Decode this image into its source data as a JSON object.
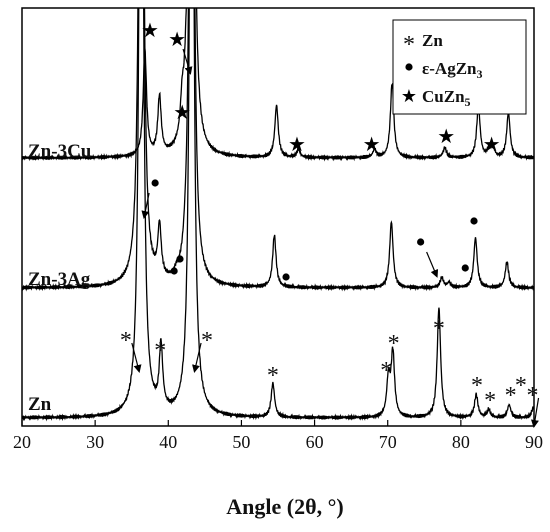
{
  "chart_data": {
    "type": "line",
    "title": "",
    "xlabel": "Angle (2θ, °)",
    "ylabel": "",
    "xlim": [
      20,
      90
    ],
    "xticks": [
      20,
      30,
      40,
      50,
      60,
      70,
      80,
      90
    ],
    "legend": {
      "position": "top-right",
      "entries": [
        {
          "symbol": "*",
          "label": "Zn",
          "label_main": "Zn",
          "label_sub": ""
        },
        {
          "symbol": "●",
          "label": "ε-AgZn3",
          "label_main": "ε-AgZn",
          "label_sub": "3"
        },
        {
          "symbol": "★",
          "label": "CuZn5",
          "label_main": "CuZn",
          "label_sub": "5"
        }
      ]
    },
    "series": [
      {
        "name": "Zn",
        "baseline": 0,
        "peaks": [
          [
            36.3,
            100
          ],
          [
            39.0,
            6.4
          ],
          [
            43.2,
            100
          ],
          [
            54.3,
            3.4
          ],
          [
            70.1,
            3.8
          ],
          [
            70.7,
            6.4
          ],
          [
            77.0,
            11.0
          ],
          [
            82.1,
            2.3
          ],
          [
            83.8,
            0.8
          ],
          [
            86.6,
            1.3
          ],
          [
            89.9,
            1.0
          ]
        ],
        "annotations": [
          {
            "symbol": "*",
            "x": 34.2,
            "y": 8.5,
            "arrow_to": 36.0
          },
          {
            "symbol": "*",
            "x": 38.9,
            "y": 7.5
          },
          {
            "symbol": "*",
            "x": 45.3,
            "y": 8.5,
            "arrow_to": 43.6
          },
          {
            "symbol": "*",
            "x": 54.3,
            "y": 5.0
          },
          {
            "symbol": "*",
            "x": 69.8,
            "y": 5.5
          },
          {
            "symbol": "*",
            "x": 70.8,
            "y": 8.2
          },
          {
            "symbol": "*",
            "x": 77.0,
            "y": 9.7
          },
          {
            "symbol": "*",
            "x": 82.2,
            "y": 4.0
          },
          {
            "symbol": "*",
            "x": 84.0,
            "y": 2.5
          },
          {
            "symbol": "*",
            "x": 86.8,
            "y": 3.0
          },
          {
            "symbol": "*",
            "x": 88.2,
            "y": 4.0
          },
          {
            "symbol": "*",
            "x": 89.8,
            "y": 3.0,
            "arrow_to": 90.0
          }
        ]
      },
      {
        "name": "Zn-3Ag",
        "baseline": 13.0,
        "peaks": [
          [
            36.3,
            100
          ],
          [
            38.8,
            5.2
          ],
          [
            41.1,
            0.4
          ],
          [
            42.3,
            0.6
          ],
          [
            43.2,
            100
          ],
          [
            54.5,
            5.2
          ],
          [
            70.5,
            6.6
          ],
          [
            77.4,
            1.0
          ],
          [
            78.4,
            0.5
          ],
          [
            82.0,
            5.0
          ],
          [
            86.3,
            2.6
          ]
        ],
        "annotations": [
          {
            "symbol": "●",
            "x": 38.2,
            "y": 10.5,
            "arrow_to": 36.7
          },
          {
            "symbol": "●",
            "x": 40.8,
            "y": 1.7
          },
          {
            "symbol": "●",
            "x": 41.6,
            "y": 2.9
          },
          {
            "symbol": "●",
            "x": 56.1,
            "y": 1.1
          },
          {
            "symbol": "●",
            "x": 74.5,
            "y": 4.6,
            "arrow_to": 76.7
          },
          {
            "symbol": "●",
            "x": 80.6,
            "y": 2.0
          },
          {
            "symbol": "●",
            "x": 81.8,
            "y": 6.7
          }
        ]
      },
      {
        "name": "Zn-3Cu",
        "baseline": 26.0,
        "peaks": [
          [
            36.8,
            10.5
          ],
          [
            38.8,
            5.8
          ],
          [
            41.9,
            3.2
          ],
          [
            42.4,
            2.0
          ],
          [
            43.2,
            100
          ],
          [
            54.8,
            5.2
          ],
          [
            57.8,
            0.8
          ],
          [
            68.2,
            0.8
          ],
          [
            70.6,
            7.5
          ],
          [
            77.8,
            1.0
          ],
          [
            82.4,
            5.2
          ],
          [
            83.9,
            1.0
          ],
          [
            84.4,
            0.8
          ],
          [
            86.5,
            4.5
          ]
        ],
        "annotations": [
          {
            "symbol": "★",
            "x": 37.5,
            "y": 12.8
          },
          {
            "symbol": "★",
            "x": 41.2,
            "y": 11.9,
            "arrow_to": 43.0
          },
          {
            "symbol": "★",
            "x": 41.9,
            "y": 4.6
          },
          {
            "symbol": "★",
            "x": 57.6,
            "y": 1.4
          },
          {
            "symbol": "★",
            "x": 67.8,
            "y": 1.4
          },
          {
            "symbol": "★",
            "x": 78.0,
            "y": 2.2
          },
          {
            "symbol": "★",
            "x": 84.2,
            "y": 1.4
          }
        ]
      }
    ]
  }
}
